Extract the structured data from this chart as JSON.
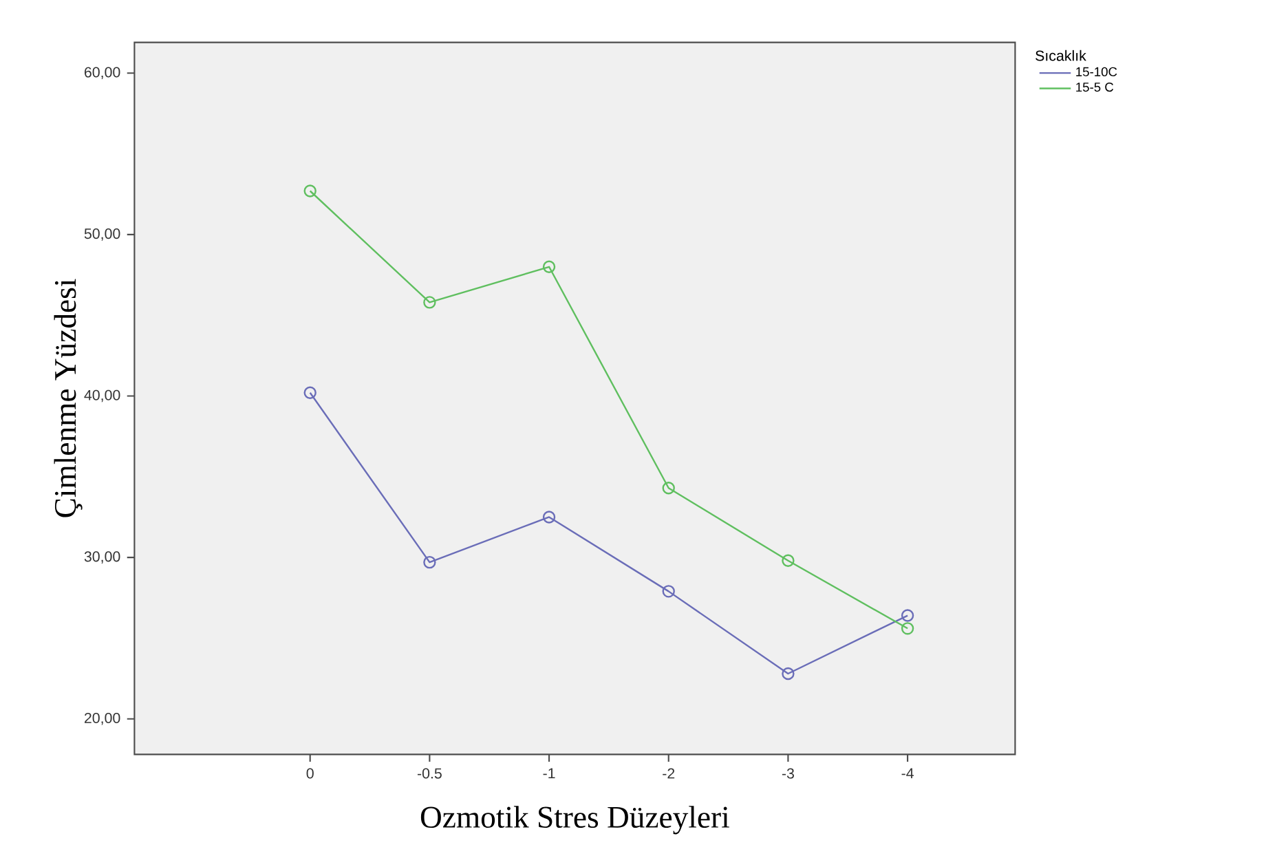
{
  "chart_data": {
    "type": "line",
    "xlabel": "Ozmotik Stres Düzeyleri",
    "ylabel": "Çimlenme Yüzdesi",
    "legend_title": "Sıcaklık",
    "categories": [
      "0",
      "-0.5",
      "-1",
      "-2",
      "-3",
      "-4"
    ],
    "series": [
      {
        "name": "15-10C",
        "color": "#6a6db8",
        "values": [
          40.2,
          29.7,
          32.5,
          27.9,
          22.8,
          26.4
        ]
      },
      {
        "name": "15-5 C",
        "color": "#5fbf5f",
        "values": [
          52.7,
          45.8,
          48.0,
          34.3,
          29.8,
          25.6
        ]
      }
    ],
    "ylim": [
      17.8,
      61.9
    ],
    "yticks": [
      {
        "value": 20,
        "label": "20,00"
      },
      {
        "value": 30,
        "label": "30,00"
      },
      {
        "value": 40,
        "label": "40,00"
      },
      {
        "value": 50,
        "label": "50,00"
      },
      {
        "value": 60,
        "label": "60,00"
      }
    ],
    "grid": false,
    "legend": "top right",
    "marker": "circle",
    "line_style": "solid"
  }
}
